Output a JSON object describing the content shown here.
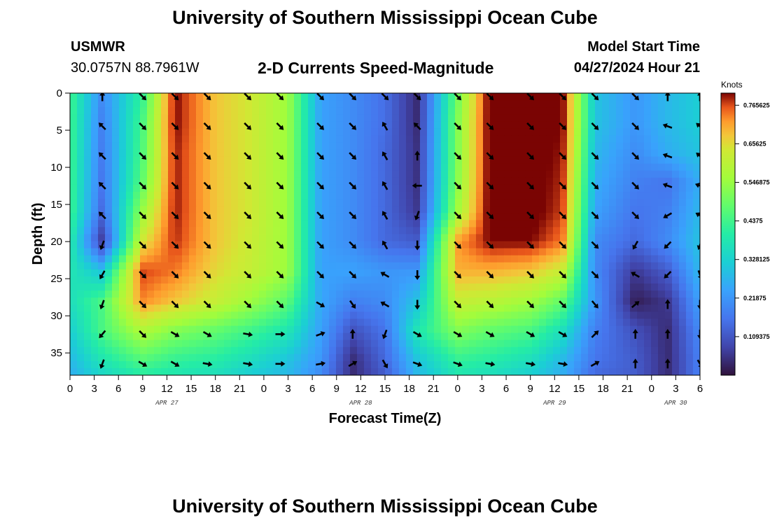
{
  "header": {
    "title": "University of Southern Mississippi Ocean Cube",
    "station": "USMWR",
    "coordinates": "30.0757N  88.7961W",
    "plot_title": "2-D Currents Speed-Magnitude",
    "model_start_label": "Model Start Time",
    "model_start_value": "04/27/2024 Hour 21"
  },
  "footer": {
    "title": "University of Southern Mississippi Ocean Cube"
  },
  "colors": {
    "arrow": "#000000",
    "frame": "#000000",
    "background": "#ffffff"
  },
  "chart_data": {
    "type": "heatmap",
    "title": "2-D Currents Speed-Magnitude",
    "xlabel": "Forecast Time(Z)",
    "ylabel": "Depth (ft)",
    "x_range_hours": [
      0,
      78
    ],
    "y_range_ft": [
      0,
      38
    ],
    "y_inverted": true,
    "x_ticks": [
      "0",
      "3",
      "6",
      "9",
      "12",
      "15",
      "18",
      "21",
      "0",
      "3",
      "6",
      "9",
      "12",
      "15",
      "18",
      "21",
      "0",
      "3",
      "6",
      "9",
      "12",
      "15",
      "18",
      "21",
      "0",
      "3",
      "6"
    ],
    "x_tick_step_hours": 3,
    "y_ticks": [
      0,
      5,
      10,
      15,
      20,
      25,
      30,
      35
    ],
    "date_labels": [
      {
        "label": "APR 27",
        "hour": 12
      },
      {
        "label": "APR 28",
        "hour": 36
      },
      {
        "label": "APR 29",
        "hour": 60
      },
      {
        "label": "APR 30",
        "hour": 75
      }
    ],
    "colorbar": {
      "units": "Knots",
      "min": 0,
      "max": 0.8,
      "ticks": [
        "0.109375",
        "0.21875",
        "0.328125",
        "0.4375",
        "0.546875",
        "0.65625",
        "0.765625"
      ]
    },
    "sample_hours": [
      0,
      4,
      9,
      13,
      18,
      22,
      27,
      31,
      35,
      39,
      43,
      48,
      52,
      57,
      61,
      65,
      70,
      74,
      78
    ],
    "sample_depths_ft": [
      0,
      4,
      8,
      12,
      16,
      20,
      24,
      28,
      32,
      36,
      38
    ],
    "speed_knots": [
      [
        0.44,
        0.2,
        0.42,
        0.8,
        0.68,
        0.64,
        0.55,
        0.24,
        0.2,
        0.15,
        0.04,
        0.5,
        0.82,
        0.82,
        0.8,
        0.3,
        0.22,
        0.28,
        0.32
      ],
      [
        0.44,
        0.18,
        0.45,
        0.8,
        0.68,
        0.64,
        0.55,
        0.24,
        0.2,
        0.15,
        0.04,
        0.52,
        0.82,
        0.82,
        0.8,
        0.3,
        0.22,
        0.28,
        0.32
      ],
      [
        0.44,
        0.17,
        0.46,
        0.79,
        0.68,
        0.64,
        0.55,
        0.24,
        0.2,
        0.14,
        0.05,
        0.52,
        0.82,
        0.82,
        0.79,
        0.28,
        0.2,
        0.26,
        0.3
      ],
      [
        0.44,
        0.16,
        0.48,
        0.79,
        0.68,
        0.64,
        0.55,
        0.24,
        0.2,
        0.14,
        0.05,
        0.53,
        0.82,
        0.82,
        0.78,
        0.26,
        0.18,
        0.16,
        0.26
      ],
      [
        0.44,
        0.14,
        0.55,
        0.79,
        0.68,
        0.64,
        0.55,
        0.24,
        0.2,
        0.14,
        0.06,
        0.56,
        0.82,
        0.82,
        0.77,
        0.24,
        0.16,
        0.18,
        0.28
      ],
      [
        0.4,
        0.06,
        0.64,
        0.78,
        0.68,
        0.63,
        0.55,
        0.24,
        0.2,
        0.14,
        0.12,
        0.72,
        0.8,
        0.8,
        0.74,
        0.2,
        0.14,
        0.2,
        0.3
      ],
      [
        0.38,
        0.3,
        0.77,
        0.74,
        0.66,
        0.62,
        0.55,
        0.24,
        0.24,
        0.22,
        0.22,
        0.7,
        0.7,
        0.68,
        0.62,
        0.2,
        0.06,
        0.12,
        0.28
      ],
      [
        0.36,
        0.45,
        0.73,
        0.68,
        0.62,
        0.56,
        0.47,
        0.25,
        0.18,
        0.2,
        0.3,
        0.62,
        0.6,
        0.56,
        0.48,
        0.22,
        0.02,
        0.06,
        0.24
      ],
      [
        0.32,
        0.45,
        0.58,
        0.52,
        0.48,
        0.44,
        0.38,
        0.24,
        0.1,
        0.16,
        0.38,
        0.52,
        0.48,
        0.45,
        0.36,
        0.18,
        0.1,
        0.04,
        0.2
      ],
      [
        0.28,
        0.38,
        0.46,
        0.42,
        0.4,
        0.36,
        0.3,
        0.22,
        0.04,
        0.14,
        0.3,
        0.42,
        0.4,
        0.36,
        0.28,
        0.16,
        0.12,
        0.04,
        0.18
      ],
      [
        0.26,
        0.34,
        0.4,
        0.38,
        0.36,
        0.32,
        0.28,
        0.2,
        0.04,
        0.12,
        0.28,
        0.38,
        0.36,
        0.32,
        0.26,
        0.14,
        0.12,
        0.04,
        0.18
      ]
    ],
    "arrows": {
      "hours": [
        4,
        9,
        13,
        17,
        22,
        26,
        31,
        35,
        39,
        43,
        48,
        52,
        57,
        61,
        65,
        70,
        74,
        78
      ],
      "depths_ft": [
        0,
        4,
        8,
        12,
        16,
        20,
        24,
        28,
        32,
        36
      ],
      "direction_deg": [
        [
          0,
          135,
          135,
          135,
          135,
          135,
          135,
          135,
          135,
          135,
          135,
          135,
          135,
          135,
          135,
          135,
          0,
          0
        ],
        [
          315,
          135,
          135,
          135,
          135,
          135,
          135,
          135,
          330,
          315,
          135,
          135,
          135,
          135,
          135,
          135,
          290,
          310
        ],
        [
          315,
          135,
          135,
          135,
          135,
          135,
          135,
          135,
          330,
          0,
          135,
          135,
          135,
          135,
          135,
          135,
          290,
          310
        ],
        [
          315,
          135,
          135,
          135,
          135,
          135,
          135,
          135,
          330,
          270,
          135,
          135,
          135,
          135,
          135,
          135,
          290,
          290
        ],
        [
          315,
          135,
          135,
          135,
          135,
          135,
          135,
          135,
          330,
          200,
          135,
          135,
          135,
          135,
          135,
          135,
          240,
          300
        ],
        [
          200,
          135,
          135,
          135,
          135,
          135,
          135,
          135,
          330,
          180,
          135,
          135,
          135,
          135,
          135,
          210,
          225,
          200
        ],
        [
          210,
          135,
          135,
          135,
          135,
          135,
          135,
          135,
          300,
          180,
          135,
          135,
          135,
          135,
          135,
          300,
          225,
          160
        ],
        [
          200,
          135,
          135,
          135,
          135,
          135,
          120,
          145,
          300,
          180,
          135,
          135,
          135,
          135,
          140,
          50,
          0,
          180
        ],
        [
          220,
          135,
          120,
          120,
          100,
          90,
          70,
          0,
          200,
          120,
          120,
          120,
          120,
          120,
          45,
          0,
          0,
          180
        ],
        [
          200,
          120,
          120,
          100,
          100,
          90,
          80,
          60,
          150,
          110,
          110,
          100,
          100,
          100,
          60,
          0,
          0,
          150
        ]
      ]
    }
  }
}
